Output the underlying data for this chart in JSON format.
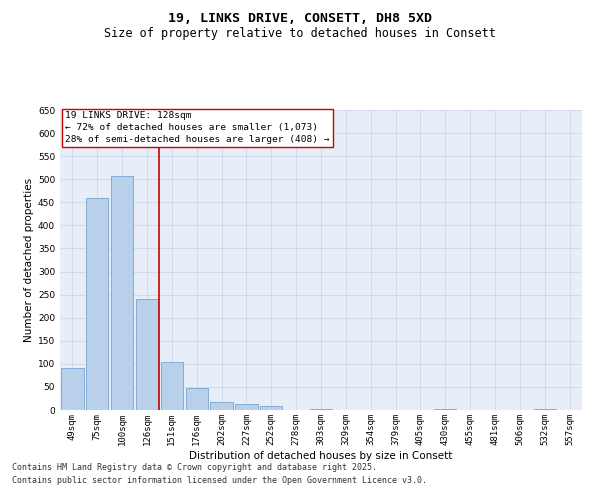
{
  "title_line1": "19, LINKS DRIVE, CONSETT, DH8 5XD",
  "title_line2": "Size of property relative to detached houses in Consett",
  "xlabel": "Distribution of detached houses by size in Consett",
  "ylabel": "Number of detached properties",
  "categories": [
    "49sqm",
    "75sqm",
    "100sqm",
    "126sqm",
    "151sqm",
    "176sqm",
    "202sqm",
    "227sqm",
    "252sqm",
    "278sqm",
    "303sqm",
    "329sqm",
    "354sqm",
    "379sqm",
    "405sqm",
    "430sqm",
    "455sqm",
    "481sqm",
    "506sqm",
    "532sqm",
    "557sqm"
  ],
  "values": [
    90,
    460,
    507,
    240,
    105,
    48,
    17,
    13,
    8,
    0,
    3,
    0,
    0,
    0,
    0,
    3,
    0,
    0,
    0,
    3,
    0
  ],
  "bar_color": "#b8d0ea",
  "bar_edge_color": "#6699cc",
  "grid_color": "#c8d4e8",
  "bg_color": "#e8eef8",
  "vline_color": "#cc0000",
  "annotation_text_line1": "19 LINKS DRIVE: 128sqm",
  "annotation_text_line2": "← 72% of detached houses are smaller (1,073)",
  "annotation_text_line3": "28% of semi-detached houses are larger (408) →",
  "ylim": [
    0,
    650
  ],
  "yticks": [
    0,
    50,
    100,
    150,
    200,
    250,
    300,
    350,
    400,
    450,
    500,
    550,
    600,
    650
  ],
  "footer_line1": "Contains HM Land Registry data © Crown copyright and database right 2025.",
  "footer_line2": "Contains public sector information licensed under the Open Government Licence v3.0.",
  "title_fontsize": 9.5,
  "subtitle_fontsize": 8.5,
  "axis_label_fontsize": 7.5,
  "tick_fontsize": 6.5,
  "annotation_fontsize": 6.8,
  "footer_fontsize": 6.0
}
